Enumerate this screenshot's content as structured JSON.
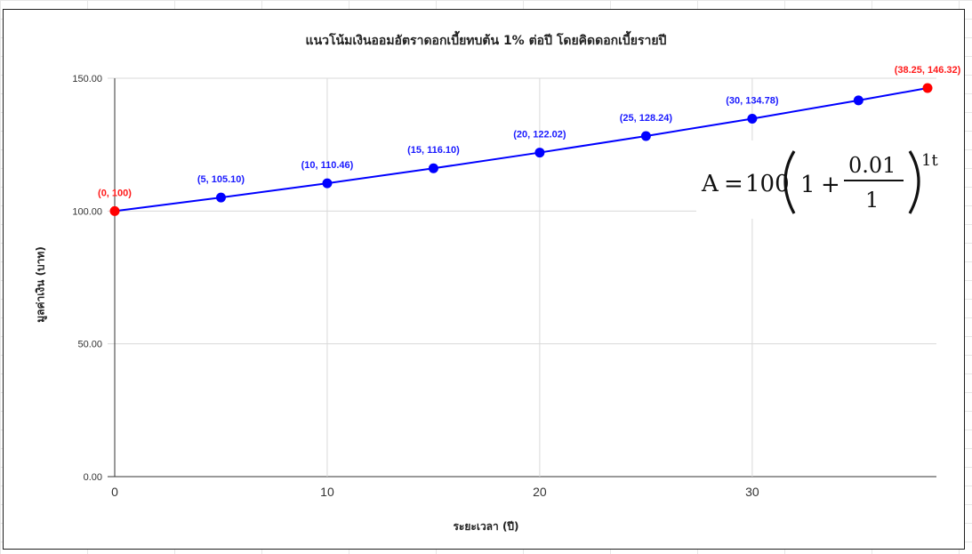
{
  "chart_data": {
    "type": "line",
    "title": "แนวโน้มเงินออมอัตราดอกเบี้ยทบต้น 1% ต่อปี โดยคิดดอกเบี้ยรายปี",
    "xlabel": "ระยะเวลา (ปี)",
    "ylabel": "มูลค่าเงิน (บาท)",
    "xlim": [
      0,
      38.25
    ],
    "ylim": [
      0,
      150
    ],
    "x_ticks": [
      "0",
      "10",
      "20",
      "30"
    ],
    "x_tick_values": [
      0,
      10,
      20,
      30
    ],
    "y_ticks": [
      "0.00",
      "50.00",
      "100.00",
      "150.00"
    ],
    "y_tick_values": [
      0,
      50,
      100,
      150
    ],
    "grid": true,
    "line_color": "#0000ff",
    "endpoint_color": "#ff0000",
    "series": [
      {
        "x": [
          0,
          5,
          10,
          15,
          20,
          25,
          30,
          35,
          38.25
        ],
        "y": [
          100,
          105.1,
          110.46,
          116.1,
          122.02,
          128.24,
          134.78,
          141.66,
          146.32
        ],
        "point_labels": [
          "(0, 100)",
          "(5, 105.10)",
          "(10, 110.46)",
          "(15, 116.10)",
          "(20, 122.02)",
          "(25, 128.24)",
          "(30, 134.78)",
          "",
          "(38.25, 146.32)"
        ],
        "point_colors": [
          "#ff0000",
          "#0000ff",
          "#0000ff",
          "#0000ff",
          "#0000ff",
          "#0000ff",
          "#0000ff",
          "#0000ff",
          "#ff0000"
        ]
      }
    ],
    "annotation": {
      "A": "A",
      "equals": "=",
      "principal": "100",
      "one": "1",
      "plus": "+",
      "numerator": "0.01",
      "denominator": "1",
      "exponent": "1t"
    }
  }
}
